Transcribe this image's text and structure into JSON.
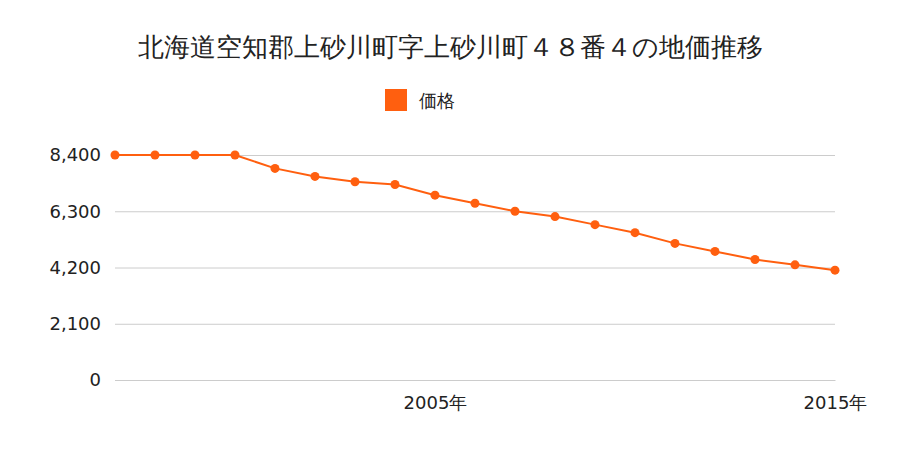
{
  "chart_data": {
    "type": "line",
    "title": "北海道空知郡上砂川町字上砂川町４８番４の地価推移",
    "x": [
      1997,
      1998,
      1999,
      2000,
      2001,
      2002,
      2003,
      2004,
      2005,
      2006,
      2007,
      2008,
      2009,
      2010,
      2011,
      2012,
      2013,
      2014,
      2015
    ],
    "series": [
      {
        "name": "価格",
        "color": "#ff5f0f",
        "marker": "circle",
        "values": [
          8400,
          8400,
          8400,
          8400,
          7900,
          7600,
          7400,
          7300,
          6900,
          6600,
          6300,
          6100,
          5800,
          5500,
          5100,
          4800,
          4500,
          4300,
          4100
        ]
      }
    ],
    "xlim": [
      1997,
      2015
    ],
    "xticks": [
      {
        "value": 2005,
        "label": "2005年"
      },
      {
        "value": 2015,
        "label": "2015年"
      }
    ],
    "ylim": [
      0,
      8400
    ],
    "yticks": [
      {
        "value": 0,
        "label": "0"
      },
      {
        "value": 2100,
        "label": "2,100"
      },
      {
        "value": 4200,
        "label": "4,200"
      },
      {
        "value": 6300,
        "label": "6,300"
      },
      {
        "value": 8400,
        "label": "8,400"
      }
    ],
    "grid": true,
    "legend": "top"
  }
}
